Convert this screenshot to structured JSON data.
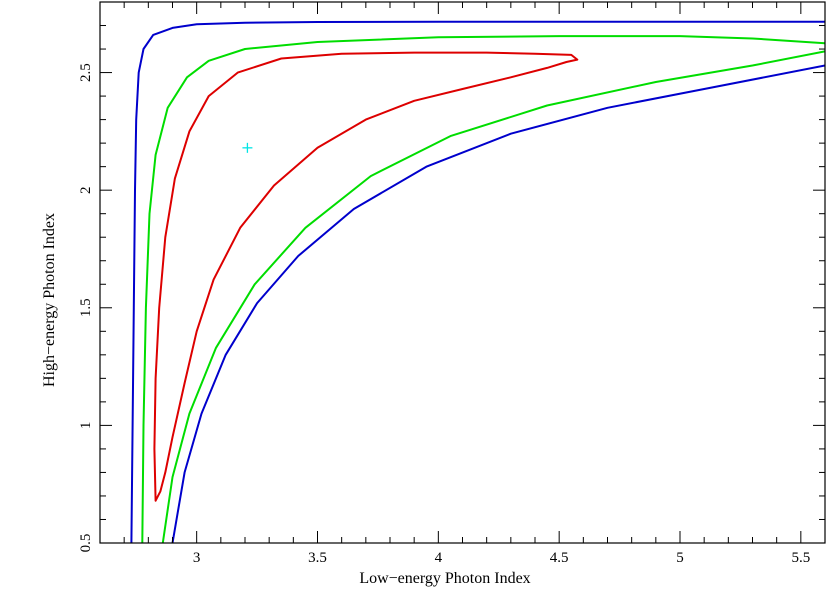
{
  "chart_data": {
    "type": "line",
    "title": "",
    "xlabel": "Low−energy Photon Index",
    "ylabel": "High−energy Photon Index",
    "xlim": [
      2.6,
      5.6
    ],
    "ylim": [
      0.5,
      2.8
    ],
    "xticks": [
      3,
      3.5,
      4,
      4.5,
      5,
      5.5
    ],
    "xtick_labels": [
      "3",
      "3.5",
      "4",
      "4.5",
      "5",
      "5.5"
    ],
    "yticks": [
      0.5,
      1,
      1.5,
      2,
      2.5
    ],
    "ytick_labels": [
      "0.5",
      "1",
      "1.5",
      "2",
      "2.5"
    ],
    "grid": false,
    "best_fit": {
      "x": 3.21,
      "y": 2.18,
      "marker": "+",
      "color": "#00e5e5"
    },
    "series": [
      {
        "color": "#0000cc",
        "closed": false,
        "points": [
          [
            2.73,
            0.5
          ],
          [
            2.735,
            1.0
          ],
          [
            2.74,
            1.5
          ],
          [
            2.745,
            2.0
          ],
          [
            2.75,
            2.3
          ],
          [
            2.76,
            2.5
          ],
          [
            2.78,
            2.6
          ],
          [
            2.82,
            2.66
          ],
          [
            2.9,
            2.69
          ],
          [
            3.0,
            2.705
          ],
          [
            3.2,
            2.712
          ],
          [
            3.5,
            2.715
          ],
          [
            4.0,
            2.716
          ],
          [
            5.0,
            2.716
          ],
          [
            5.6,
            2.716
          ]
        ]
      },
      {
        "color": "#0000cc",
        "closed": false,
        "points": [
          [
            2.9,
            0.5
          ],
          [
            2.95,
            0.8
          ],
          [
            3.02,
            1.05
          ],
          [
            3.12,
            1.3
          ],
          [
            3.25,
            1.52
          ],
          [
            3.42,
            1.72
          ],
          [
            3.65,
            1.92
          ],
          [
            3.95,
            2.1
          ],
          [
            4.3,
            2.24
          ],
          [
            4.7,
            2.35
          ],
          [
            5.1,
            2.43
          ],
          [
            5.6,
            2.53
          ]
        ]
      },
      {
        "color": "#00dd00",
        "closed": false,
        "points": [
          [
            2.775,
            0.5
          ],
          [
            2.78,
            1.0
          ],
          [
            2.79,
            1.5
          ],
          [
            2.805,
            1.9
          ],
          [
            2.83,
            2.15
          ],
          [
            2.88,
            2.35
          ],
          [
            2.96,
            2.48
          ],
          [
            3.05,
            2.55
          ],
          [
            3.2,
            2.6
          ],
          [
            3.5,
            2.63
          ],
          [
            4.0,
            2.65
          ],
          [
            4.5,
            2.655
          ],
          [
            5.0,
            2.655
          ],
          [
            5.3,
            2.645
          ],
          [
            5.6,
            2.625
          ]
        ]
      },
      {
        "color": "#00dd00",
        "closed": false,
        "points": [
          [
            2.86,
            0.5
          ],
          [
            2.9,
            0.78
          ],
          [
            2.97,
            1.05
          ],
          [
            3.08,
            1.33
          ],
          [
            3.24,
            1.6
          ],
          [
            3.45,
            1.84
          ],
          [
            3.72,
            2.06
          ],
          [
            4.05,
            2.23
          ],
          [
            4.45,
            2.36
          ],
          [
            4.9,
            2.46
          ],
          [
            5.3,
            2.53
          ],
          [
            5.6,
            2.59
          ]
        ]
      },
      {
        "color": "#dd0000",
        "closed": true,
        "points": [
          [
            2.83,
            0.68
          ],
          [
            2.825,
            0.9
          ],
          [
            2.83,
            1.2
          ],
          [
            2.845,
            1.5
          ],
          [
            2.87,
            1.8
          ],
          [
            2.91,
            2.05
          ],
          [
            2.97,
            2.25
          ],
          [
            3.05,
            2.4
          ],
          [
            3.17,
            2.5
          ],
          [
            3.35,
            2.56
          ],
          [
            3.6,
            2.58
          ],
          [
            3.9,
            2.585
          ],
          [
            4.2,
            2.585
          ],
          [
            4.4,
            2.58
          ],
          [
            4.55,
            2.575
          ],
          [
            4.575,
            2.555
          ],
          [
            4.53,
            2.545
          ],
          [
            4.45,
            2.52
          ],
          [
            4.3,
            2.48
          ],
          [
            4.1,
            2.43
          ],
          [
            3.9,
            2.38
          ],
          [
            3.7,
            2.3
          ],
          [
            3.5,
            2.18
          ],
          [
            3.32,
            2.02
          ],
          [
            3.18,
            1.84
          ],
          [
            3.07,
            1.62
          ],
          [
            3.0,
            1.4
          ],
          [
            2.95,
            1.18
          ],
          [
            2.9,
            0.95
          ],
          [
            2.87,
            0.8
          ],
          [
            2.85,
            0.72
          ]
        ]
      }
    ]
  }
}
